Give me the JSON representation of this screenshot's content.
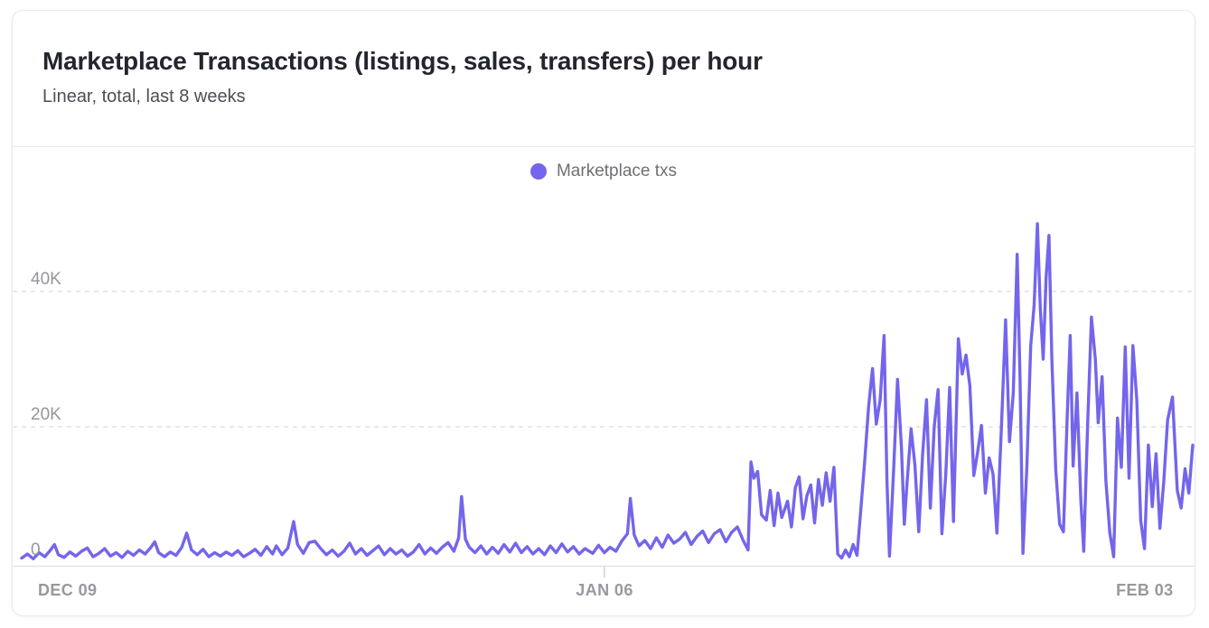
{
  "card": {
    "title": "Marketplace Transactions (listings, sales, transfers) per hour",
    "subtitle": "Linear, total, last 8 weeks"
  },
  "legend": {
    "label": "Marketplace txs",
    "dot_color": "#7465ec"
  },
  "colors": {
    "line": "#7465ec",
    "grid_dashed": "#d9d9de",
    "axis_line": "#e3e3e7",
    "tick_mark": "#d2d2d8",
    "card_border": "#e9e9ec"
  },
  "chart_data": {
    "type": "line",
    "title": "Marketplace Transactions (listings, sales, transfers) per hour",
    "subtitle": "Linear, total, last 8 weeks",
    "legend_position": "top-center",
    "grid": "horizontal-dashed",
    "x_axis": {
      "unit": "days relative to DEC 09 tick",
      "domain": [
        -2.2,
        58.5
      ],
      "ticks": [
        {
          "pos": 0,
          "label": "DEC 09",
          "tick_mark": false
        },
        {
          "pos": 28,
          "label": "JAN 06",
          "tick_mark": true
        },
        {
          "pos": 56,
          "label": "FEB 03",
          "tick_mark": false
        }
      ]
    },
    "y_axis": {
      "unit": "transactions per hour (values in thousands)",
      "range": [
        0,
        52
      ],
      "ticks": [
        {
          "value": 0,
          "label": "0"
        },
        {
          "value": 20,
          "label": "20K"
        },
        {
          "value": 40,
          "label": "40K"
        }
      ]
    },
    "series": [
      {
        "name": "Marketplace txs",
        "color": "#7465ec",
        "value_unit": "thousands of txs",
        "points": [
          [
            -2.2,
            0.6
          ],
          [
            -1.9,
            1.2
          ],
          [
            -1.6,
            0.5
          ],
          [
            -1.3,
            1.4
          ],
          [
            -1.0,
            0.8
          ],
          [
            -0.7,
            1.8
          ],
          [
            -0.5,
            2.6
          ],
          [
            -0.3,
            1.1
          ],
          [
            0,
            0.7
          ],
          [
            0.3,
            1.5
          ],
          [
            0.6,
            0.9
          ],
          [
            0.9,
            1.6
          ],
          [
            1.2,
            2.1
          ],
          [
            1.5,
            0.8
          ],
          [
            1.8,
            1.3
          ],
          [
            2.1,
            2.0
          ],
          [
            2.4,
            0.9
          ],
          [
            2.7,
            1.4
          ],
          [
            3.0,
            0.7
          ],
          [
            3.3,
            1.6
          ],
          [
            3.6,
            1.0
          ],
          [
            3.9,
            1.8
          ],
          [
            4.2,
            1.2
          ],
          [
            4.5,
            2.2
          ],
          [
            4.7,
            3.0
          ],
          [
            4.9,
            1.4
          ],
          [
            5.2,
            0.8
          ],
          [
            5.5,
            1.5
          ],
          [
            5.8,
            1.0
          ],
          [
            6.1,
            2.2
          ],
          [
            6.35,
            4.3
          ],
          [
            6.6,
            1.8
          ],
          [
            6.9,
            1.1
          ],
          [
            7.2,
            1.9
          ],
          [
            7.5,
            0.8
          ],
          [
            7.8,
            1.4
          ],
          [
            8.1,
            0.9
          ],
          [
            8.4,
            1.5
          ],
          [
            8.7,
            1.0
          ],
          [
            9.0,
            1.7
          ],
          [
            9.3,
            0.8
          ],
          [
            9.6,
            1.3
          ],
          [
            9.9,
            1.9
          ],
          [
            10.2,
            1.0
          ],
          [
            10.5,
            2.3
          ],
          [
            10.8,
            1.2
          ],
          [
            11.0,
            2.4
          ],
          [
            11.3,
            1.1
          ],
          [
            11.6,
            2.1
          ],
          [
            11.9,
            6.0
          ],
          [
            12.1,
            2.6
          ],
          [
            12.4,
            1.3
          ],
          [
            12.7,
            2.9
          ],
          [
            13.0,
            3.1
          ],
          [
            13.3,
            2.0
          ],
          [
            13.6,
            1.1
          ],
          [
            13.9,
            1.8
          ],
          [
            14.2,
            0.9
          ],
          [
            14.5,
            1.6
          ],
          [
            14.8,
            2.8
          ],
          [
            15.1,
            1.2
          ],
          [
            15.4,
            2.0
          ],
          [
            15.7,
            1.0
          ],
          [
            16.0,
            1.7
          ],
          [
            16.3,
            2.4
          ],
          [
            16.6,
            1.1
          ],
          [
            16.9,
            2.0
          ],
          [
            17.2,
            1.2
          ],
          [
            17.5,
            1.8
          ],
          [
            17.8,
            0.9
          ],
          [
            18.1,
            1.5
          ],
          [
            18.4,
            2.6
          ],
          [
            18.7,
            1.2
          ],
          [
            19.0,
            2.1
          ],
          [
            19.3,
            1.3
          ],
          [
            19.6,
            2.2
          ],
          [
            19.9,
            2.9
          ],
          [
            20.2,
            1.6
          ],
          [
            20.45,
            3.6
          ],
          [
            20.6,
            9.7
          ],
          [
            20.8,
            3.4
          ],
          [
            21.0,
            2.2
          ],
          [
            21.3,
            1.4
          ],
          [
            21.6,
            2.4
          ],
          [
            21.9,
            1.2
          ],
          [
            22.2,
            2.2
          ],
          [
            22.5,
            1.3
          ],
          [
            22.8,
            2.6
          ],
          [
            23.1,
            1.5
          ],
          [
            23.4,
            2.8
          ],
          [
            23.7,
            1.4
          ],
          [
            24.0,
            2.3
          ],
          [
            24.3,
            1.2
          ],
          [
            24.6,
            2.0
          ],
          [
            24.9,
            1.1
          ],
          [
            25.2,
            2.4
          ],
          [
            25.5,
            1.4
          ],
          [
            25.8,
            2.7
          ],
          [
            26.1,
            1.5
          ],
          [
            26.4,
            2.3
          ],
          [
            26.7,
            1.2
          ],
          [
            27.0,
            2.0
          ],
          [
            27.4,
            1.3
          ],
          [
            27.7,
            2.5
          ],
          [
            28.0,
            1.4
          ],
          [
            28.3,
            2.2
          ],
          [
            28.6,
            1.6
          ],
          [
            28.9,
            3.1
          ],
          [
            29.2,
            4.2
          ],
          [
            29.35,
            9.4
          ],
          [
            29.55,
            4.0
          ],
          [
            29.8,
            2.4
          ],
          [
            30.1,
            3.2
          ],
          [
            30.4,
            2.0
          ],
          [
            30.7,
            3.6
          ],
          [
            31.0,
            2.2
          ],
          [
            31.3,
            4.0
          ],
          [
            31.6,
            2.8
          ],
          [
            31.9,
            3.4
          ],
          [
            32.2,
            4.4
          ],
          [
            32.5,
            2.6
          ],
          [
            32.8,
            3.8
          ],
          [
            33.1,
            4.6
          ],
          [
            33.4,
            2.9
          ],
          [
            33.7,
            4.2
          ],
          [
            34.0,
            4.8
          ],
          [
            34.3,
            3.0
          ],
          [
            34.6,
            4.4
          ],
          [
            34.9,
            5.2
          ],
          [
            35.2,
            3.2
          ],
          [
            35.45,
            1.8
          ],
          [
            35.6,
            14.8
          ],
          [
            35.75,
            12.4
          ],
          [
            35.95,
            13.4
          ],
          [
            36.15,
            7.0
          ],
          [
            36.4,
            6.2
          ],
          [
            36.6,
            10.6
          ],
          [
            36.8,
            5.4
          ],
          [
            37.0,
            10.2
          ],
          [
            37.2,
            6.6
          ],
          [
            37.5,
            9.0
          ],
          [
            37.7,
            5.2
          ],
          [
            37.9,
            11.0
          ],
          [
            38.1,
            12.6
          ],
          [
            38.3,
            6.4
          ],
          [
            38.5,
            9.8
          ],
          [
            38.7,
            11.4
          ],
          [
            38.9,
            5.8
          ],
          [
            39.1,
            12.2
          ],
          [
            39.3,
            8.4
          ],
          [
            39.5,
            13.2
          ],
          [
            39.7,
            9.0
          ],
          [
            39.9,
            14.0
          ],
          [
            40.1,
            1.2
          ],
          [
            40.3,
            0.6
          ],
          [
            40.5,
            1.8
          ],
          [
            40.7,
            0.8
          ],
          [
            40.9,
            2.6
          ],
          [
            41.1,
            1.0
          ],
          [
            41.3,
            8.0
          ],
          [
            41.5,
            15.0
          ],
          [
            41.7,
            23.0
          ],
          [
            41.9,
            28.6
          ],
          [
            42.1,
            20.4
          ],
          [
            42.3,
            24.0
          ],
          [
            42.5,
            33.5
          ],
          [
            42.65,
            12.0
          ],
          [
            42.78,
            0.9
          ],
          [
            43.0,
            14.0
          ],
          [
            43.2,
            27.0
          ],
          [
            43.4,
            17.0
          ],
          [
            43.55,
            5.6
          ],
          [
            43.7,
            12.0
          ],
          [
            43.9,
            19.7
          ],
          [
            44.1,
            14.4
          ],
          [
            44.3,
            4.5
          ],
          [
            44.5,
            16.0
          ],
          [
            44.7,
            24.0
          ],
          [
            44.9,
            8.0
          ],
          [
            45.1,
            20.0
          ],
          [
            45.3,
            25.5
          ],
          [
            45.5,
            4.2
          ],
          [
            45.7,
            13.0
          ],
          [
            45.9,
            25.8
          ],
          [
            46.1,
            6.0
          ],
          [
            46.35,
            33.0
          ],
          [
            46.55,
            27.8
          ],
          [
            46.75,
            30.6
          ],
          [
            46.95,
            26.0
          ],
          [
            47.15,
            12.8
          ],
          [
            47.35,
            16.2
          ],
          [
            47.55,
            20.2
          ],
          [
            47.75,
            10.2
          ],
          [
            47.95,
            15.4
          ],
          [
            48.15,
            13.0
          ],
          [
            48.35,
            4.3
          ],
          [
            48.6,
            21.0
          ],
          [
            48.8,
            35.8
          ],
          [
            49.0,
            17.8
          ],
          [
            49.2,
            25.0
          ],
          [
            49.4,
            45.5
          ],
          [
            49.55,
            27.0
          ],
          [
            49.7,
            1.3
          ],
          [
            49.9,
            14.0
          ],
          [
            50.1,
            32.0
          ],
          [
            50.28,
            38.0
          ],
          [
            50.45,
            50.0
          ],
          [
            50.6,
            37.5
          ],
          [
            50.75,
            30.0
          ],
          [
            50.9,
            42.0
          ],
          [
            51.05,
            48.3
          ],
          [
            51.2,
            30.0
          ],
          [
            51.4,
            13.6
          ],
          [
            51.6,
            5.6
          ],
          [
            51.8,
            4.5
          ],
          [
            52.0,
            22.0
          ],
          [
            52.15,
            33.5
          ],
          [
            52.3,
            14.2
          ],
          [
            52.5,
            25.0
          ],
          [
            52.7,
            9.0
          ],
          [
            52.85,
            1.6
          ],
          [
            53.05,
            20.0
          ],
          [
            53.25,
            36.2
          ],
          [
            53.45,
            30.0
          ],
          [
            53.6,
            20.6
          ],
          [
            53.8,
            27.4
          ],
          [
            54.0,
            12.0
          ],
          [
            54.2,
            4.4
          ],
          [
            54.4,
            0.8
          ],
          [
            54.6,
            21.3
          ],
          [
            54.8,
            14.0
          ],
          [
            55.0,
            31.8
          ],
          [
            55.2,
            12.4
          ],
          [
            55.4,
            32.0
          ],
          [
            55.6,
            24.0
          ],
          [
            55.8,
            6.2
          ],
          [
            56.0,
            2.0
          ],
          [
            56.2,
            17.3
          ],
          [
            56.4,
            8.2
          ],
          [
            56.6,
            16.0
          ],
          [
            56.8,
            5.0
          ],
          [
            57.0,
            12.0
          ],
          [
            57.2,
            21.0
          ],
          [
            57.45,
            24.4
          ],
          [
            57.7,
            10.6
          ],
          [
            57.9,
            8.0
          ],
          [
            58.1,
            13.8
          ],
          [
            58.3,
            10.2
          ],
          [
            58.5,
            17.3
          ]
        ]
      }
    ]
  }
}
